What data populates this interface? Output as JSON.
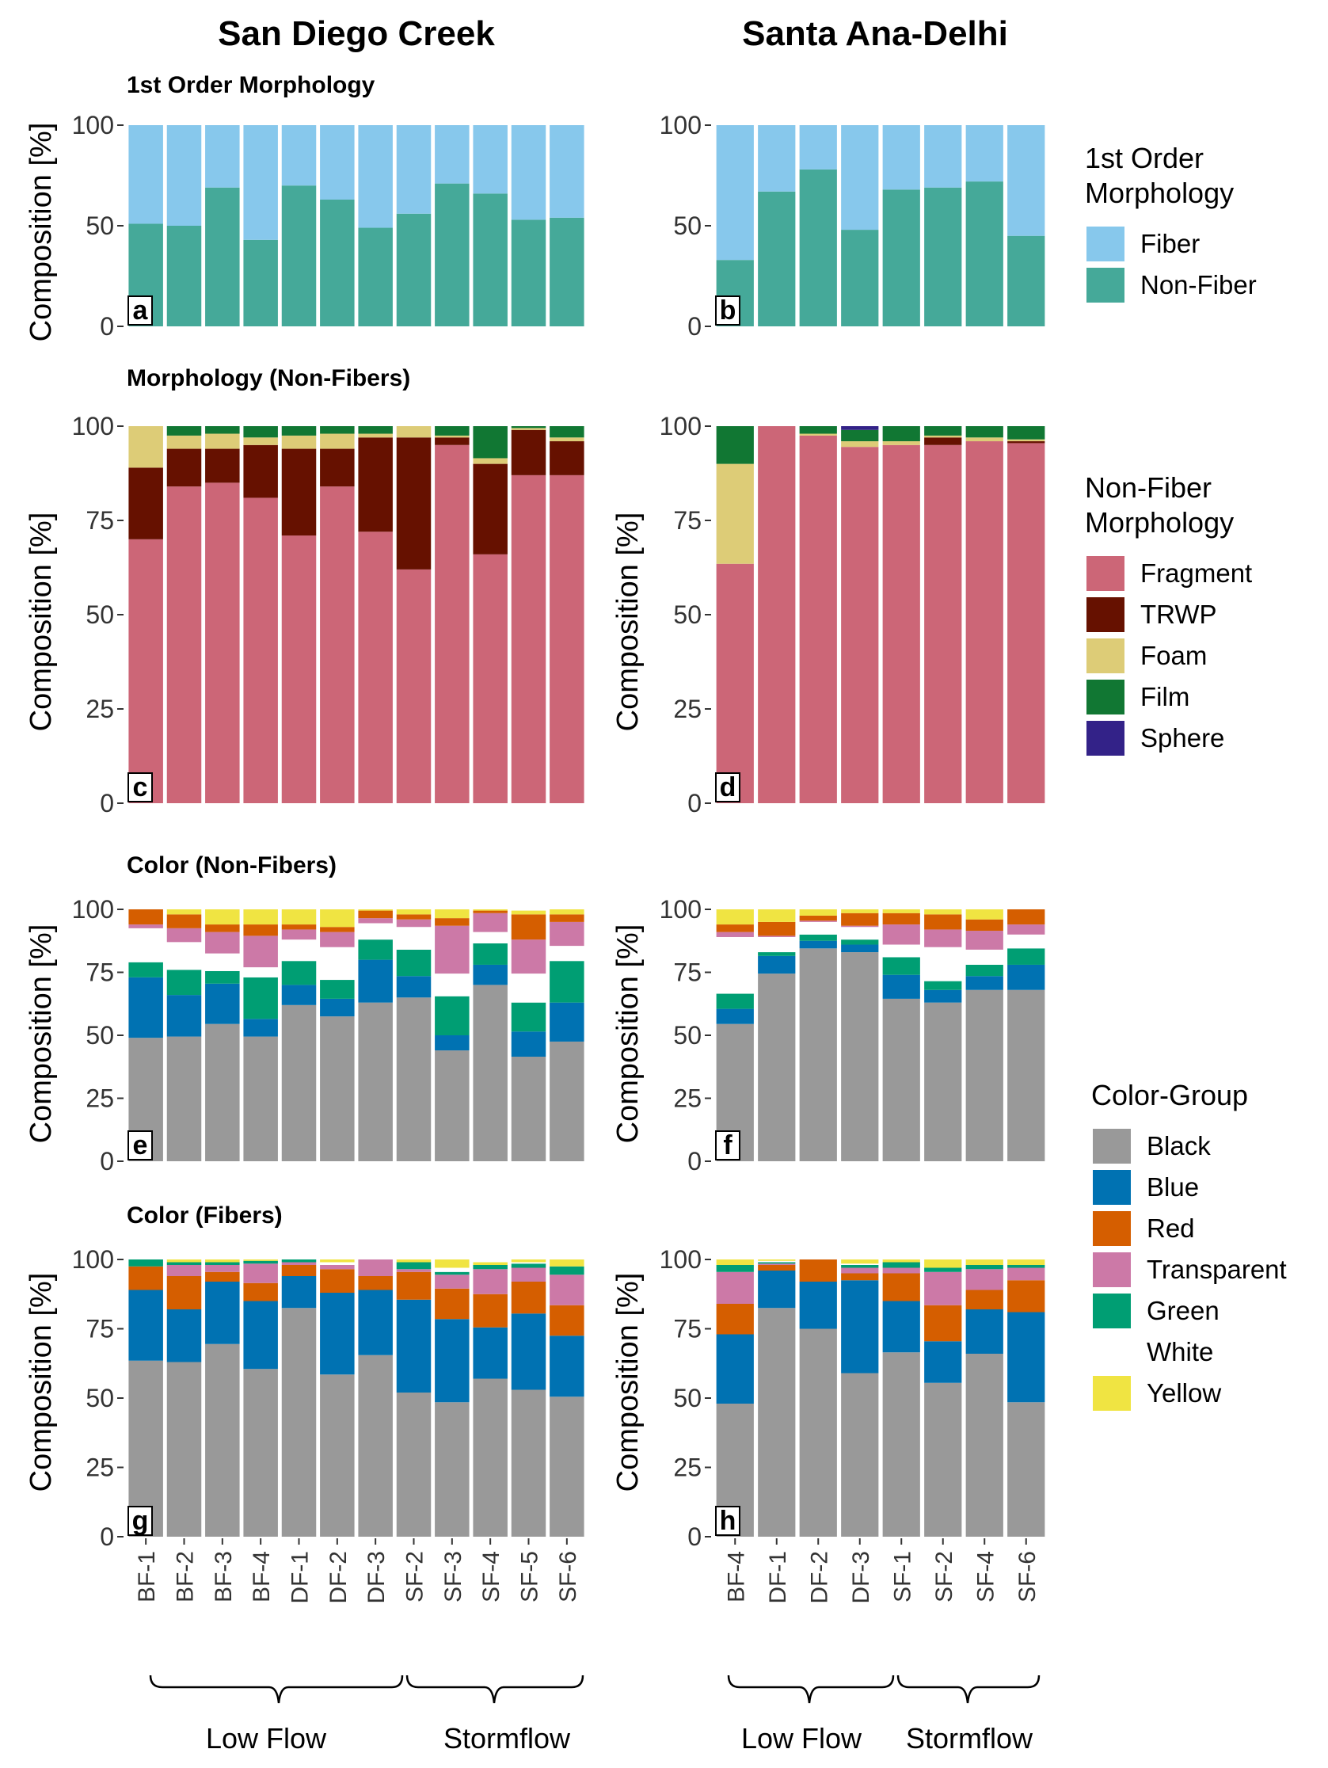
{
  "figure": {
    "columns": [
      "San Diego Creek",
      "Santa Ana-Delhi"
    ],
    "panel_titles": {
      "row1": "1st Order Morphology",
      "row2": "Morphology (Non-Fibers)",
      "row3": "Color (Non-Fibers)",
      "row4": "Color (Fibers)"
    },
    "ylabel": "Composition [%]",
    "groups": {
      "sdc": [
        "Low Flow",
        "Stormflow"
      ],
      "sad": [
        "Low Flow",
        "Stormflow"
      ]
    }
  },
  "legends": [
    {
      "title": [
        "1st Order",
        "Morphology"
      ],
      "items": [
        {
          "label": "Fiber",
          "color": "#87C8EC"
        },
        {
          "label": "Non-Fiber",
          "color": "#45A999"
        }
      ]
    },
    {
      "title": [
        "Non-Fiber",
        "Morphology"
      ],
      "items": [
        {
          "label": "Fragment",
          "color": "#CC6677"
        },
        {
          "label": "TRWP",
          "color": "#661100"
        },
        {
          "label": "Foam",
          "color": "#DDCC77"
        },
        {
          "label": "Film",
          "color": "#117733"
        },
        {
          "label": "Sphere",
          "color": "#332288"
        }
      ]
    },
    {
      "title": [
        "Color-Group"
      ],
      "items": [
        {
          "label": "Black",
          "color": "#999999"
        },
        {
          "label": "Blue",
          "color": "#0072B2"
        },
        {
          "label": "Red",
          "color": "#D55E00"
        },
        {
          "label": "Transparent",
          "color": "#CC79A7"
        },
        {
          "label": "Green",
          "color": "#009E73"
        },
        {
          "label": "White",
          "color": "#FFFFFF"
        },
        {
          "label": "Yellow",
          "color": "#F0E442"
        }
      ]
    }
  ],
  "chart_data": [
    {
      "id": "a",
      "type": "bar",
      "stacked": true,
      "ylim": [
        0,
        100
      ],
      "yticks": [
        0,
        50,
        100
      ],
      "ylabel": "Composition [%]",
      "title": "1st Order Morphology",
      "categories": [
        "BF-1",
        "BF-2",
        "BF-3",
        "BF-4",
        "DF-1",
        "DF-2",
        "DF-3",
        "SF-2",
        "SF-3",
        "SF-4",
        "SF-5",
        "SF-6"
      ],
      "series": [
        {
          "name": "Non-Fiber",
          "color": "#45A999",
          "values": [
            51,
            50,
            69,
            43,
            70,
            63,
            49,
            56,
            71,
            66,
            53,
            54
          ]
        },
        {
          "name": "Fiber",
          "color": "#87C8EC",
          "values": [
            49,
            50,
            31,
            57,
            30,
            37,
            51,
            44,
            29,
            34,
            47,
            46
          ]
        }
      ]
    },
    {
      "id": "b",
      "type": "bar",
      "stacked": true,
      "ylim": [
        0,
        100
      ],
      "yticks": [
        0,
        50,
        100
      ],
      "categories": [
        "BF-4",
        "DF-1",
        "DF-2",
        "DF-3",
        "SF-1",
        "SF-2",
        "SF-4",
        "SF-6"
      ],
      "series": [
        {
          "name": "Non-Fiber",
          "color": "#45A999",
          "values": [
            33,
            67,
            78,
            48,
            68,
            69,
            72,
            45
          ]
        },
        {
          "name": "Fiber",
          "color": "#87C8EC",
          "values": [
            67,
            33,
            22,
            52,
            32,
            31,
            28,
            55
          ]
        }
      ]
    },
    {
      "id": "c",
      "type": "bar",
      "stacked": true,
      "ylim": [
        0,
        100
      ],
      "yticks": [
        0,
        25,
        50,
        75,
        100
      ],
      "ylabel": "Composition [%]",
      "title": "Morphology (Non-Fibers)",
      "categories": [
        "BF-1",
        "BF-2",
        "BF-3",
        "BF-4",
        "DF-1",
        "DF-2",
        "DF-3",
        "SF-2",
        "SF-3",
        "SF-4",
        "SF-5",
        "SF-6"
      ],
      "series": [
        {
          "name": "Fragment",
          "color": "#CC6677",
          "values": [
            70,
            84,
            85,
            81,
            71,
            84,
            72,
            62,
            95,
            66,
            87,
            87
          ]
        },
        {
          "name": "TRWP",
          "color": "#661100",
          "values": [
            19,
            10,
            9,
            14,
            23,
            10,
            25,
            35,
            2,
            24,
            12,
            9
          ]
        },
        {
          "name": "Foam",
          "color": "#DDCC77",
          "values": [
            11,
            3.5,
            4,
            2,
            3.5,
            4,
            1,
            3,
            0.5,
            1.5,
            0.5,
            1
          ]
        },
        {
          "name": "Film",
          "color": "#117733",
          "values": [
            0,
            2.5,
            2,
            3,
            2.5,
            2,
            2,
            0,
            2.5,
            8.5,
            0.5,
            3
          ]
        },
        {
          "name": "Sphere",
          "color": "#332288",
          "values": [
            0,
            0,
            0,
            0,
            0,
            0,
            0,
            0,
            0,
            0,
            0,
            0
          ]
        }
      ]
    },
    {
      "id": "d",
      "type": "bar",
      "stacked": true,
      "ylim": [
        0,
        100
      ],
      "yticks": [
        0,
        25,
        50,
        75,
        100
      ],
      "categories": [
        "BF-4",
        "DF-1",
        "DF-2",
        "DF-3",
        "SF-1",
        "SF-2",
        "SF-4",
        "SF-6"
      ],
      "series": [
        {
          "name": "Fragment",
          "color": "#CC6677",
          "values": [
            63.5,
            100,
            97.5,
            94.5,
            95,
            95,
            96,
            95.5
          ]
        },
        {
          "name": "TRWP",
          "color": "#661100",
          "values": [
            0,
            0,
            0,
            0,
            0,
            2,
            0,
            0.5
          ]
        },
        {
          "name": "Foam",
          "color": "#DDCC77",
          "values": [
            26.5,
            0,
            0.5,
            1.5,
            1,
            0.5,
            1,
            0.5
          ]
        },
        {
          "name": "Film",
          "color": "#117733",
          "values": [
            10,
            0,
            2,
            3,
            4,
            2.5,
            3,
            3.5
          ]
        },
        {
          "name": "Sphere",
          "color": "#332288",
          "values": [
            0,
            0,
            0,
            1,
            0,
            0,
            0,
            0
          ]
        }
      ]
    },
    {
      "id": "e",
      "type": "bar",
      "stacked": true,
      "ylim": [
        0,
        100
      ],
      "yticks": [
        0,
        25,
        50,
        75,
        100
      ],
      "ylabel": "Composition [%]",
      "title": "Color (Non-Fibers)",
      "categories": [
        "BF-1",
        "BF-2",
        "BF-3",
        "BF-4",
        "DF-1",
        "DF-2",
        "DF-3",
        "SF-2",
        "SF-3",
        "SF-4",
        "SF-5",
        "SF-6"
      ],
      "series": [
        {
          "name": "Black",
          "color": "#999999",
          "values": [
            49,
            49.5,
            54.5,
            49.5,
            62,
            57.5,
            63,
            65,
            44,
            70,
            41.5,
            47.5
          ]
        },
        {
          "name": "Blue",
          "color": "#0072B2",
          "values": [
            24,
            16.5,
            16,
            7,
            8,
            7,
            17,
            8.5,
            6,
            8,
            10,
            15.5
          ]
        },
        {
          "name": "Green",
          "color": "#009E73",
          "values": [
            6,
            10,
            5,
            16.5,
            9.5,
            7.5,
            8,
            10.5,
            15.5,
            8.5,
            11.5,
            16.5
          ]
        },
        {
          "name": "White",
          "color": "#FFFFFF",
          "values": [
            13.5,
            11,
            7,
            4,
            8.5,
            13,
            6.5,
            9,
            9,
            4.5,
            11.5,
            6
          ]
        },
        {
          "name": "Transparent",
          "color": "#CC79A7",
          "values": [
            1.5,
            5.5,
            8.5,
            12.5,
            4,
            6,
            2,
            3,
            19,
            7.5,
            13.5,
            9.5
          ]
        },
        {
          "name": "Red",
          "color": "#D55E00",
          "values": [
            6,
            5.5,
            3,
            4.5,
            2,
            2,
            3,
            2,
            3,
            1,
            10,
            3
          ]
        },
        {
          "name": "Yellow",
          "color": "#F0E442",
          "values": [
            0,
            2,
            6,
            6,
            6,
            7,
            0.5,
            2,
            3.5,
            0.5,
            1.5,
            2
          ]
        }
      ]
    },
    {
      "id": "f",
      "type": "bar",
      "stacked": true,
      "ylim": [
        0,
        100
      ],
      "yticks": [
        0,
        25,
        50,
        75,
        100
      ],
      "categories": [
        "BF-4",
        "DF-1",
        "DF-2",
        "DF-3",
        "SF-1",
        "SF-2",
        "SF-4",
        "SF-6"
      ],
      "series": [
        {
          "name": "Black",
          "color": "#999999",
          "values": [
            54.5,
            74.5,
            84.5,
            83,
            64.5,
            63,
            68,
            68
          ]
        },
        {
          "name": "Blue",
          "color": "#0072B2",
          "values": [
            6,
            7,
            3,
            3,
            9.5,
            5,
            5.5,
            10
          ]
        },
        {
          "name": "Green",
          "color": "#009E73",
          "values": [
            6,
            1.5,
            2.5,
            2,
            7,
            3.5,
            4.5,
            6.5
          ]
        },
        {
          "name": "White",
          "color": "#FFFFFF",
          "values": [
            22.5,
            6,
            5,
            5,
            5,
            13.5,
            6,
            5.5
          ]
        },
        {
          "name": "Transparent",
          "color": "#CC79A7",
          "values": [
            2,
            0.5,
            0.5,
            0.5,
            8,
            7,
            7.5,
            4
          ]
        },
        {
          "name": "Red",
          "color": "#D55E00",
          "values": [
            3,
            5.5,
            2,
            5,
            4.5,
            6,
            4.5,
            6.5
          ]
        },
        {
          "name": "Yellow",
          "color": "#F0E442",
          "values": [
            6,
            5,
            2.5,
            1.5,
            1.5,
            2,
            4,
            1.5
          ]
        }
      ]
    },
    {
      "id": "g",
      "type": "bar",
      "stacked": true,
      "ylim": [
        0,
        100
      ],
      "yticks": [
        0,
        25,
        50,
        75,
        100
      ],
      "ylabel": "Composition [%]",
      "title": "Color (Fibers)",
      "categories": [
        "BF-1",
        "BF-2",
        "BF-3",
        "BF-4",
        "DF-1",
        "DF-2",
        "DF-3",
        "SF-2",
        "SF-3",
        "SF-4",
        "SF-5",
        "SF-6"
      ],
      "series": [
        {
          "name": "Black",
          "color": "#999999",
          "values": [
            63.5,
            63,
            69.5,
            60.5,
            82.5,
            58.5,
            65.5,
            52,
            48.5,
            57,
            53,
            50.5
          ]
        },
        {
          "name": "Blue",
          "color": "#0072B2",
          "values": [
            25.5,
            19,
            22.5,
            24.5,
            11.5,
            29.5,
            23.5,
            33.5,
            30,
            18.5,
            27.5,
            22
          ]
        },
        {
          "name": "Red",
          "color": "#D55E00",
          "values": [
            8.5,
            12,
            3.5,
            6.5,
            4,
            8.5,
            5,
            10,
            11,
            12,
            11.5,
            11
          ]
        },
        {
          "name": "Transparent",
          "color": "#CC79A7",
          "values": [
            0,
            4,
            2.5,
            7,
            1,
            1.5,
            6,
            1,
            5,
            9,
            5,
            11
          ]
        },
        {
          "name": "Green",
          "color": "#009E73",
          "values": [
            2.5,
            1,
            1,
            1,
            1,
            0,
            0,
            2.5,
            1,
            1.5,
            1.5,
            3
          ]
        },
        {
          "name": "White",
          "color": "#FFFFFF",
          "values": [
            0,
            0,
            0,
            0,
            0,
            1,
            0,
            0,
            1.5,
            0,
            0.5,
            0
          ]
        },
        {
          "name": "Yellow",
          "color": "#F0E442",
          "values": [
            0,
            1,
            1,
            0.5,
            0,
            1,
            0,
            1,
            3,
            1,
            1,
            2.5
          ]
        }
      ]
    },
    {
      "id": "h",
      "type": "bar",
      "stacked": true,
      "ylim": [
        0,
        100
      ],
      "yticks": [
        0,
        25,
        50,
        75,
        100
      ],
      "categories": [
        "BF-4",
        "DF-1",
        "DF-2",
        "DF-3",
        "SF-1",
        "SF-2",
        "SF-4",
        "SF-6"
      ],
      "series": [
        {
          "name": "Black",
          "color": "#999999",
          "values": [
            48,
            82.5,
            75,
            59,
            66.5,
            55.5,
            66,
            48.5
          ]
        },
        {
          "name": "Blue",
          "color": "#0072B2",
          "values": [
            25,
            13.5,
            17,
            33.5,
            18.5,
            15,
            16,
            32.5
          ]
        },
        {
          "name": "Red",
          "color": "#D55E00",
          "values": [
            11,
            2,
            8,
            2.5,
            10,
            13,
            7,
            11.5
          ]
        },
        {
          "name": "Transparent",
          "color": "#CC79A7",
          "values": [
            11.5,
            0.5,
            0,
            2,
            2,
            12,
            7.5,
            4.5
          ]
        },
        {
          "name": "Green",
          "color": "#009E73",
          "values": [
            2.5,
            0.5,
            0,
            1,
            2,
            1.5,
            1.5,
            1
          ]
        },
        {
          "name": "White",
          "color": "#FFFFFF",
          "values": [
            0,
            0.5,
            0,
            0.5,
            0,
            0,
            0,
            0
          ]
        },
        {
          "name": "Yellow",
          "color": "#F0E442",
          "values": [
            2,
            0.5,
            0,
            1.5,
            1,
            3,
            2,
            2
          ]
        }
      ]
    }
  ]
}
